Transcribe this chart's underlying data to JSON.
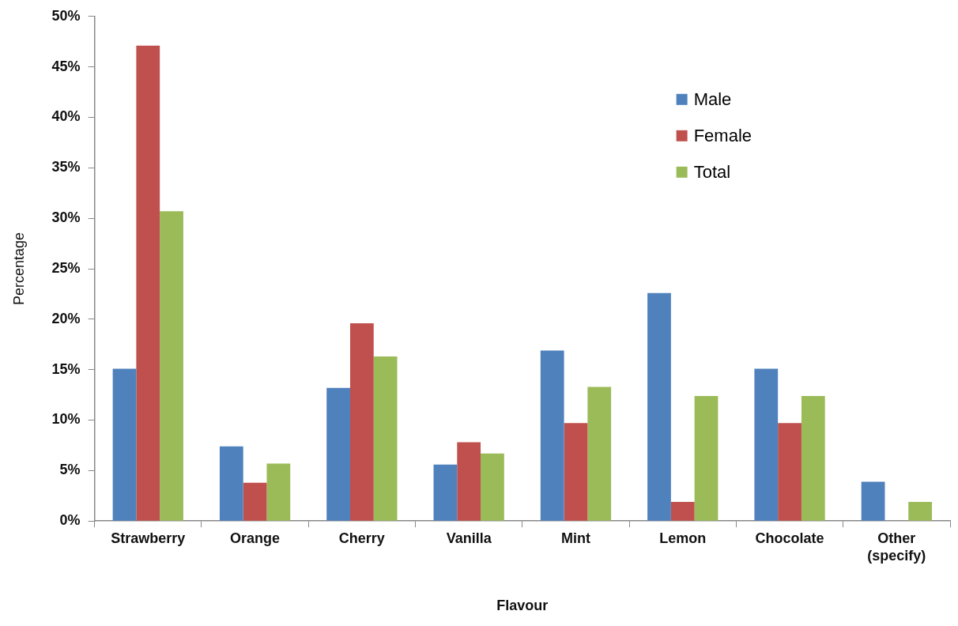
{
  "chart_data": {
    "type": "bar",
    "xlabel": "Flavour",
    "ylabel": "Percentage",
    "categories": [
      "Strawberry",
      "Orange",
      "Cherry",
      "Vanilla",
      "Mint",
      "Lemon",
      "Chocolate",
      "Other (specify)"
    ],
    "series": [
      {
        "name": "Male",
        "color": "#4f81bd",
        "values": [
          15.1,
          7.4,
          13.2,
          5.6,
          16.9,
          22.6,
          15.1,
          3.9
        ]
      },
      {
        "name": "Female",
        "color": "#c0504d",
        "values": [
          47.1,
          3.8,
          19.6,
          7.8,
          9.7,
          1.9,
          9.7,
          0
        ]
      },
      {
        "name": "Total",
        "color": "#9bbb59",
        "values": [
          30.7,
          5.7,
          16.3,
          6.7,
          13.3,
          12.4,
          12.4,
          1.9
        ]
      }
    ],
    "ylim": [
      0,
      50
    ],
    "yticks": [
      {
        "value": 0,
        "label": "0%"
      },
      {
        "value": 5,
        "label": "5%"
      },
      {
        "value": 10,
        "label": "10%"
      },
      {
        "value": 15,
        "label": "15%"
      },
      {
        "value": 20,
        "label": "20%"
      },
      {
        "value": 25,
        "label": "25%"
      },
      {
        "value": 30,
        "label": "30%"
      },
      {
        "value": 35,
        "label": "35%"
      },
      {
        "value": 40,
        "label": "40%"
      },
      {
        "value": 45,
        "label": "45%"
      },
      {
        "value": 50,
        "label": "50%"
      }
    ],
    "grid": false,
    "legend": "top right"
  }
}
